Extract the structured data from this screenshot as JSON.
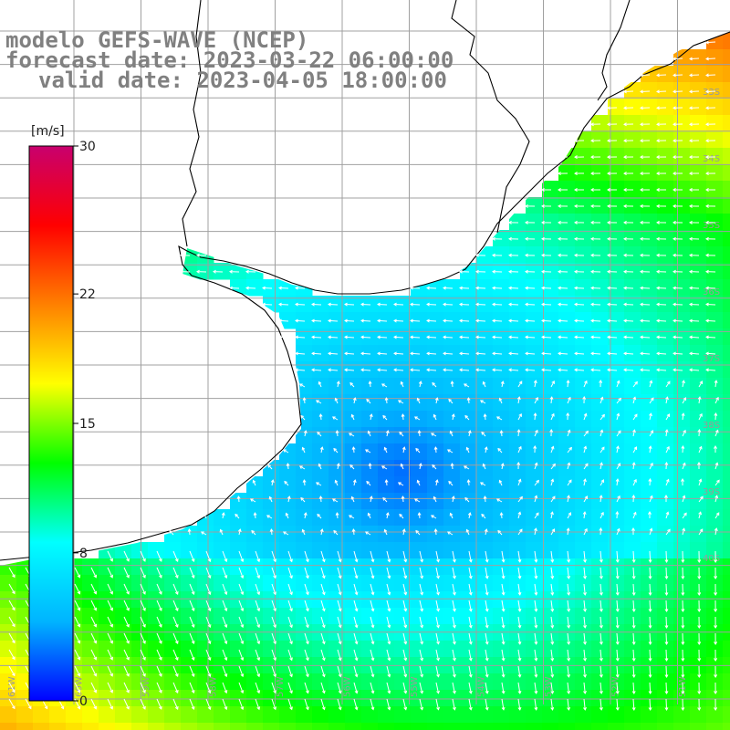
{
  "title": {
    "line1": "modelo GEFS-WAVE (NCEP)",
    "line2": "forecast date: 2023-03-22 06:00:00",
    "line3": "valid date: 2023-04-05 18:00:00"
  },
  "colorbar": {
    "unit": "[m/s]",
    "ticks": [
      {
        "value": 30,
        "label": "30"
      },
      {
        "value": 22,
        "label": "22"
      },
      {
        "value": 15,
        "label": "15"
      },
      {
        "value": 8,
        "label": "8"
      },
      {
        "value": 0,
        "label": "0"
      }
    ],
    "min": 0,
    "max": 30,
    "stops": [
      "#0000ff",
      "#00b4ff",
      "#00ffff",
      "#00ff00",
      "#ffff00",
      "#ff8000",
      "#ff0000",
      "#c8006e"
    ]
  },
  "map": {
    "lon_labels": [
      "61W",
      "60W",
      "59W",
      "58W",
      "57W",
      "56W",
      "55W",
      "54W",
      "53W",
      "52W",
      "51W"
    ],
    "lat_labels": [
      "33S",
      "34S",
      "35S",
      "36S",
      "37S",
      "38S",
      "39S",
      "40S"
    ],
    "land_color": "#ffffff",
    "coast_color": "#000000",
    "grid_color": "#a0a0a0",
    "arrow_color": "#ffffff"
  }
}
